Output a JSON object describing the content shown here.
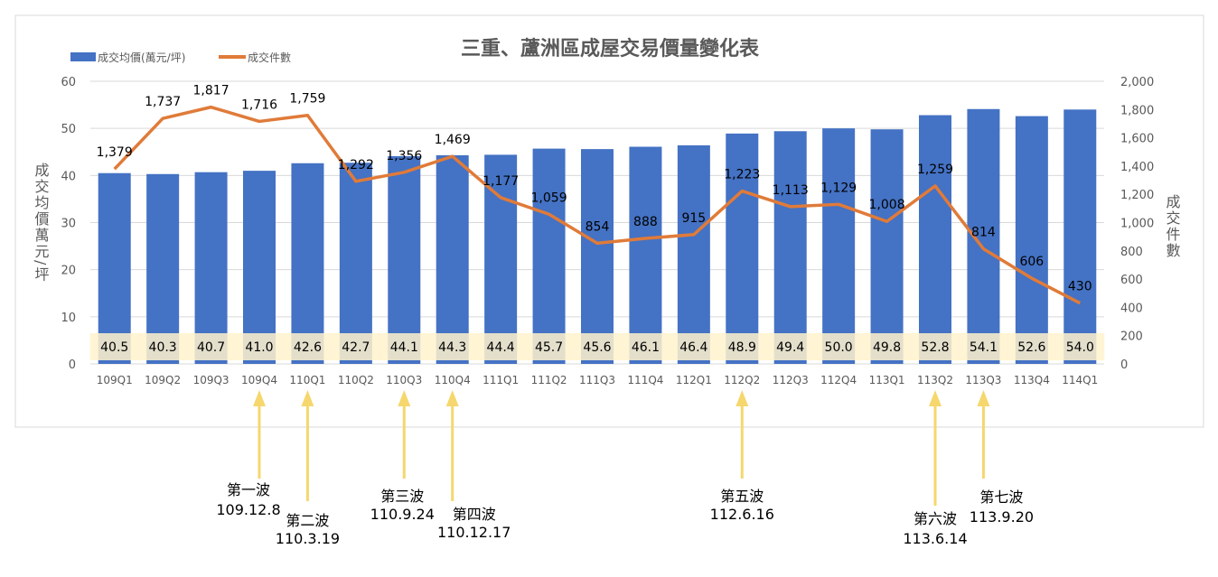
{
  "chart_data": {
    "type": "bar+line",
    "title": "三重、蘆洲區成屋交易價量變化表",
    "categories": [
      "109Q1",
      "109Q2",
      "109Q3",
      "109Q4",
      "110Q1",
      "110Q2",
      "110Q3",
      "110Q4",
      "111Q1",
      "111Q2",
      "111Q3",
      "111Q4",
      "112Q1",
      "112Q2",
      "112Q3",
      "112Q4",
      "113Q1",
      "113Q2",
      "113Q3",
      "113Q4",
      "114Q1"
    ],
    "series": [
      {
        "name": "成交均價(萬元/坪)",
        "type": "bar",
        "axis": "left",
        "color": "#4472C4",
        "values": [
          40.5,
          40.3,
          40.7,
          41.0,
          42.6,
          42.7,
          44.1,
          44.3,
          44.4,
          45.7,
          45.6,
          46.1,
          46.4,
          48.9,
          49.4,
          50.0,
          49.8,
          52.8,
          54.1,
          52.6,
          54.0
        ]
      },
      {
        "name": "成交件數",
        "type": "line",
        "axis": "right",
        "color": "#E07B39",
        "values": [
          1379,
          1737,
          1817,
          1716,
          1759,
          1292,
          1356,
          1469,
          1177,
          1059,
          854,
          888,
          915,
          1223,
          1113,
          1129,
          1008,
          1259,
          814,
          606,
          430
        ]
      }
    ],
    "ylabel": "成交均價萬元/坪",
    "y2label": "成交件數",
    "ylim": [
      0,
      60
    ],
    "yticks": [
      0,
      10,
      20,
      30,
      40,
      50,
      60
    ],
    "y2lim": [
      0,
      2000
    ],
    "y2ticks": [
      "0",
      "200",
      "400",
      "600",
      "800",
      "1,000",
      "1,200",
      "1,400",
      "1,600",
      "1,800",
      "2,000"
    ],
    "grid": true,
    "legend": "top-left",
    "annotations": [
      {
        "label": "第一波",
        "date": "109.12.8",
        "category": "109Q4"
      },
      {
        "label": "第二波",
        "date": "110.3.19",
        "category": "110Q1"
      },
      {
        "label": "第三波",
        "date": "110.9.24",
        "category": "110Q3"
      },
      {
        "label": "第四波",
        "date": "110.12.17",
        "category": "110Q4"
      },
      {
        "label": "第五波",
        "date": "112.6.16",
        "category": "112Q2"
      },
      {
        "label": "第六波",
        "date": "113.6.14",
        "category": "113Q2"
      },
      {
        "label": "第七波",
        "date": "113.9.20",
        "category": "113Q3"
      }
    ],
    "annotation_color": "#F5D76E"
  }
}
